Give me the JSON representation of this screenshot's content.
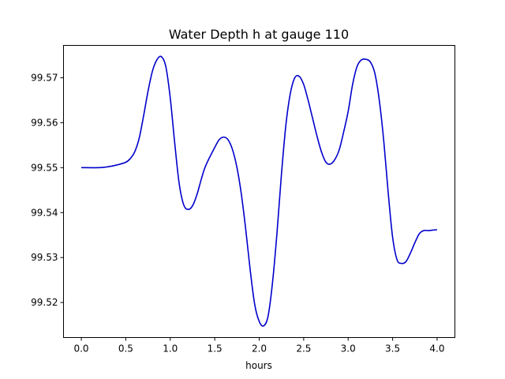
{
  "chart_data": {
    "type": "line",
    "title": "Water Depth h at gauge 110",
    "xlabel": "hours",
    "ylabel": "",
    "xlim": [
      -0.2,
      4.2
    ],
    "ylim": [
      99.5122,
      99.5772
    ],
    "xticks": [
      0.0,
      0.5,
      1.0,
      1.5,
      2.0,
      2.5,
      3.0,
      3.5,
      4.0
    ],
    "xtick_labels": [
      "0.0",
      "0.5",
      "1.0",
      "1.5",
      "2.0",
      "2.5",
      "3.0",
      "3.5",
      "4.0"
    ],
    "yticks": [
      99.52,
      99.53,
      99.54,
      99.55,
      99.56,
      99.57
    ],
    "ytick_labels": [
      "99.52",
      "99.53",
      "99.54",
      "99.55",
      "99.56",
      "99.57"
    ],
    "grid": false,
    "series": [
      {
        "color": "#0000cc",
        "x": [
          0.0,
          0.2,
          0.3,
          0.4,
          0.5,
          0.55,
          0.6,
          0.65,
          0.7,
          0.75,
          0.8,
          0.85,
          0.9,
          0.95,
          1.0,
          1.05,
          1.1,
          1.15,
          1.2,
          1.25,
          1.3,
          1.35,
          1.4,
          1.5,
          1.55,
          1.6,
          1.65,
          1.7,
          1.75,
          1.8,
          1.85,
          1.9,
          1.95,
          2.0,
          2.05,
          2.1,
          2.15,
          2.2,
          2.25,
          2.3,
          2.35,
          2.4,
          2.45,
          2.5,
          2.55,
          2.6,
          2.65,
          2.7,
          2.75,
          2.8,
          2.85,
          2.9,
          2.95,
          3.0,
          3.05,
          3.1,
          3.15,
          3.2,
          3.25,
          3.3,
          3.35,
          3.4,
          3.45,
          3.5,
          3.55,
          3.6,
          3.65,
          3.7,
          3.75,
          3.8,
          3.85,
          3.9,
          3.95,
          4.0
        ],
        "y": [
          99.55,
          99.55,
          99.5502,
          99.5506,
          99.5512,
          99.552,
          99.5535,
          99.5565,
          99.5615,
          99.567,
          99.5715,
          99.574,
          99.5747,
          99.5725,
          99.5655,
          99.5555,
          99.5465,
          99.5418,
          99.5407,
          99.5415,
          99.544,
          99.5475,
          99.5505,
          99.5545,
          99.5562,
          99.5568,
          99.5562,
          99.554,
          99.55,
          99.544,
          99.536,
          99.527,
          99.5195,
          99.5158,
          99.5148,
          99.517,
          99.5245,
          99.5355,
          99.5485,
          99.5595,
          99.5665,
          99.57,
          99.5703,
          99.5685,
          99.565,
          99.561,
          99.557,
          99.5535,
          99.5512,
          99.5508,
          99.5518,
          99.554,
          99.558,
          99.5625,
          99.5685,
          99.5725,
          99.574,
          99.5741,
          99.5735,
          99.571,
          99.565,
          99.556,
          99.5445,
          99.5345,
          99.5295,
          99.5287,
          99.5291,
          99.531,
          99.5333,
          99.5353,
          99.536,
          99.536,
          99.5361,
          99.5362
        ]
      }
    ]
  }
}
